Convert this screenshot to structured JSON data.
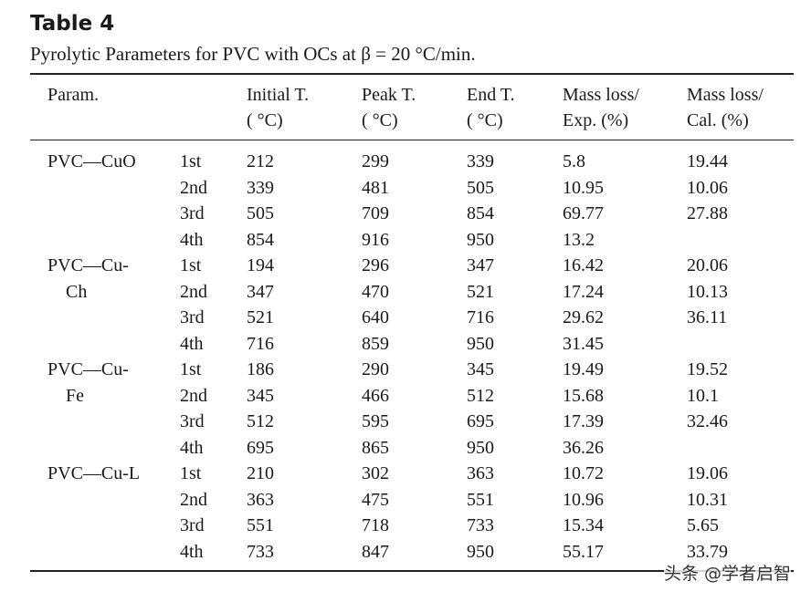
{
  "header": {
    "title": "Table 4",
    "caption": "Pyrolytic Parameters for PVC with OCs at β = 20 °C/min."
  },
  "table": {
    "columns": [
      [
        "Param."
      ],
      [
        "Initial T.",
        "( °C)"
      ],
      [
        "Peak T.",
        "( °C)"
      ],
      [
        "End T.",
        "( °C)"
      ],
      [
        "Mass loss/",
        "Exp. (%)"
      ],
      [
        "Mass loss/",
        "Cal. (%)"
      ]
    ],
    "groups": [
      {
        "name": [
          "PVC—CuO"
        ],
        "rows": [
          [
            "1st",
            212,
            299,
            339,
            5.8,
            19.44
          ],
          [
            "2nd",
            339,
            481,
            505,
            10.95,
            10.06
          ],
          [
            "3rd",
            505,
            709,
            854,
            69.77,
            27.88
          ],
          [
            "4th",
            854,
            916,
            950,
            13.2
          ]
        ]
      },
      {
        "name": [
          "PVC—Cu-",
          "Ch"
        ],
        "rows": [
          [
            "1st",
            194,
            296,
            347,
            16.42,
            20.06
          ],
          [
            "2nd",
            347,
            470,
            521,
            17.24,
            10.13
          ],
          [
            "3rd",
            521,
            640,
            716,
            29.62,
            36.11
          ],
          [
            "4th",
            716,
            859,
            950,
            31.45
          ]
        ]
      },
      {
        "name": [
          "PVC—Cu-",
          "Fe"
        ],
        "rows": [
          [
            "1st",
            186,
            290,
            345,
            19.49,
            19.52
          ],
          [
            "2nd",
            345,
            466,
            512,
            15.68,
            10.1
          ],
          [
            "3rd",
            512,
            595,
            695,
            17.39,
            32.46
          ],
          [
            "4th",
            695,
            865,
            950,
            36.26
          ]
        ]
      },
      {
        "name": [
          "PVC—Cu-L"
        ],
        "rows": [
          [
            "1st",
            210,
            302,
            363,
            10.72,
            19.06
          ],
          [
            "2nd",
            363,
            475,
            551,
            10.96,
            10.31
          ],
          [
            "3rd",
            551,
            718,
            733,
            15.34,
            5.65
          ],
          [
            "4th",
            733,
            847,
            950,
            55.17,
            33.79
          ]
        ]
      }
    ]
  },
  "watermark": "头条 @学者启智"
}
